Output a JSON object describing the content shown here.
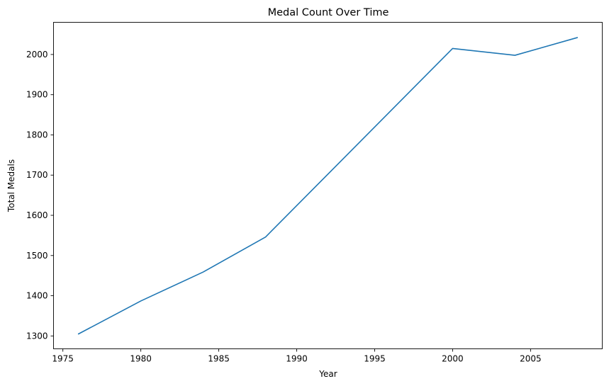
{
  "chart_data": {
    "type": "line",
    "title": "Medal Count Over Time",
    "xlabel": "Year",
    "ylabel": "Total Medals",
    "x": [
      1976,
      1980,
      1984,
      1988,
      2000,
      2004,
      2008
    ],
    "series": [
      {
        "values": [
          1305,
          1387,
          1459,
          1546,
          2015,
          1998,
          2042
        ],
        "color": "#1f77b4"
      }
    ],
    "xlim": [
      1974.4,
      2009.6
    ],
    "ylim": [
      1268,
      2080
    ],
    "xticks": [
      1975,
      1980,
      1985,
      1990,
      1995,
      2000,
      2005
    ],
    "xtick_labels": [
      "1975",
      "1980",
      "1985",
      "1990",
      "1995",
      "2000",
      "2005"
    ],
    "yticks": [
      1300,
      1400,
      1500,
      1600,
      1700,
      1800,
      1900,
      2000
    ],
    "ytick_labels": [
      "1300",
      "1400",
      "1500",
      "1600",
      "1700",
      "1800",
      "1900",
      "2000"
    ],
    "grid": false,
    "legend": "none"
  }
}
